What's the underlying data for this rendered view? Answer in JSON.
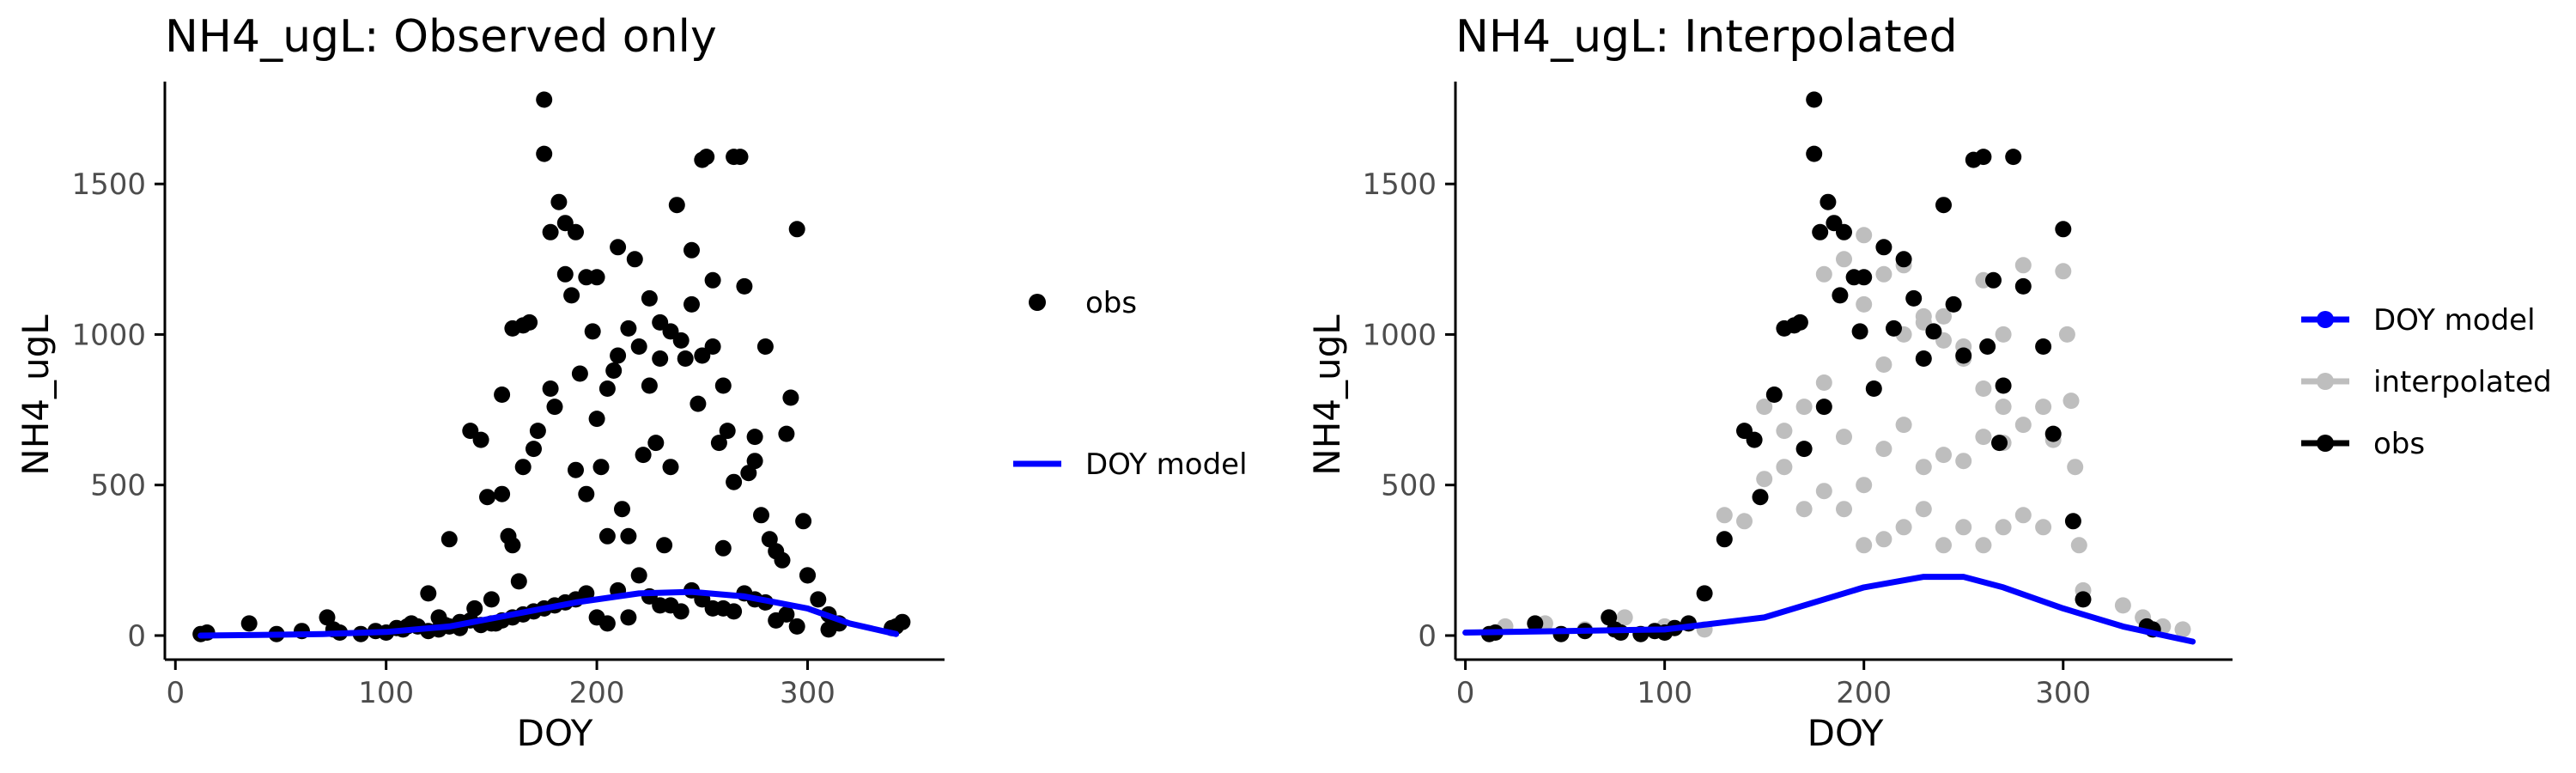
{
  "panels": [
    {
      "title": "NH4_ugL: Observed only",
      "xlabel": "DOY",
      "ylabel": "NH4_ugL",
      "x_ticks": [
        0,
        100,
        200,
        300
      ],
      "y_ticks": [
        0,
        500,
        1000,
        1500
      ],
      "legend": [
        {
          "label": "obs",
          "key": "point"
        },
        {
          "label": "DOY model",
          "key": "line"
        }
      ]
    },
    {
      "title": "NH4_ugL: Interpolated",
      "xlabel": "DOY",
      "ylabel": "NH4_ugL",
      "x_ticks": [
        0,
        100,
        200,
        300
      ],
      "y_ticks": [
        0,
        500,
        1000,
        1500
      ],
      "legend": [
        {
          "label": "DOY model",
          "key": "line-point"
        },
        {
          "label": "interpolated",
          "key": "line-point"
        },
        {
          "label": "obs",
          "key": "line-point"
        }
      ]
    }
  ],
  "colors": {
    "obs": "#000000",
    "model": "#0000ff",
    "interpolated": "#bebebe",
    "axis": "#000000",
    "tick_label": "#4d4d4d"
  },
  "chart_data": [
    {
      "type": "scatter",
      "title": "NH4_ugL: Observed only",
      "xlabel": "DOY",
      "ylabel": "NH4_ugL",
      "xlim": [
        -5,
        365
      ],
      "ylim": [
        -80,
        1840
      ],
      "grid": false,
      "legend_position": "right",
      "series": [
        {
          "name": "obs",
          "kind": "points",
          "x": [
            12,
            15,
            35,
            48,
            60,
            72,
            75,
            78,
            88,
            95,
            100,
            105,
            108,
            112,
            115,
            120,
            125,
            128,
            130,
            135,
            140,
            142,
            145,
            148,
            150,
            152,
            155,
            155,
            158,
            160,
            160,
            163,
            165,
            165,
            168,
            170,
            172,
            175,
            175,
            178,
            178,
            180,
            182,
            185,
            185,
            188,
            190,
            190,
            192,
            195,
            195,
            198,
            200,
            200,
            202,
            205,
            205,
            208,
            210,
            210,
            212,
            215,
            215,
            218,
            220,
            222,
            225,
            225,
            228,
            230,
            230,
            232,
            235,
            235,
            238,
            240,
            242,
            245,
            245,
            248,
            250,
            250,
            252,
            255,
            255,
            258,
            260,
            260,
            262,
            265,
            265,
            268,
            270,
            272,
            275,
            275,
            278,
            280,
            282,
            285,
            288,
            290,
            292,
            295,
            298,
            300,
            305,
            310,
            315,
            340,
            342,
            345,
            120,
            130,
            140,
            150,
            160,
            170,
            180,
            190,
            200,
            210,
            220,
            230,
            240,
            250,
            260,
            270,
            280,
            290,
            300,
            110,
            125,
            135,
            145,
            155,
            165,
            175,
            185,
            195,
            205,
            215,
            225,
            235,
            245,
            255,
            265,
            275,
            285,
            295,
            310
          ],
          "y": [
            5,
            10,
            40,
            5,
            15,
            60,
            20,
            10,
            5,
            15,
            10,
            25,
            20,
            40,
            30,
            140,
            60,
            35,
            320,
            45,
            680,
            90,
            650,
            460,
            120,
            40,
            800,
            470,
            330,
            1020,
            300,
            180,
            1030,
            560,
            1040,
            620,
            680,
            1780,
            1600,
            1340,
            820,
            760,
            1440,
            1370,
            1200,
            1130,
            550,
            1340,
            870,
            1190,
            470,
            1010,
            720,
            1190,
            560,
            820,
            330,
            880,
            930,
            1290,
            420,
            1020,
            330,
            1250,
            960,
            600,
            1120,
            830,
            640,
            920,
            1040,
            300,
            1010,
            560,
            1430,
            980,
            920,
            1100,
            1280,
            770,
            930,
            1580,
            1590,
            960,
            1180,
            640,
            830,
            290,
            680,
            510,
            1590,
            1590,
            1160,
            540,
            660,
            580,
            400,
            960,
            320,
            280,
            250,
            670,
            790,
            1350,
            380,
            200,
            120,
            70,
            40,
            25,
            30,
            45,
            15,
            30,
            50,
            40,
            60,
            80,
            100,
            120,
            60,
            150,
            200,
            100,
            80,
            120,
            90,
            140,
            110,
            70,
            200,
            30,
            20,
            25,
            35,
            50,
            70,
            90,
            110,
            140,
            40,
            60,
            130,
            100,
            150,
            90,
            80,
            120,
            50,
            30,
            20
          ],
          "y_note": "approximate sample; full dataset not recoverable"
        },
        {
          "name": "DOY model",
          "kind": "line",
          "x": [
            12,
            40,
            70,
            100,
            130,
            160,
            190,
            220,
            245,
            270,
            300,
            320,
            342
          ],
          "y": [
            0,
            2,
            5,
            12,
            30,
            70,
            110,
            140,
            145,
            130,
            90,
            40,
            5
          ]
        }
      ]
    },
    {
      "type": "scatter",
      "title": "NH4_ugL: Interpolated",
      "xlabel": "DOY",
      "ylabel": "NH4_ugL",
      "xlim": [
        -5,
        385
      ],
      "ylim": [
        -80,
        1840
      ],
      "grid": false,
      "legend_position": "right",
      "series": [
        {
          "name": "interpolated",
          "kind": "points",
          "x": [
            180,
            190,
            200,
            210,
            220,
            230,
            240,
            250,
            260,
            270,
            280,
            290,
            295,
            300,
            302,
            304,
            306,
            308,
            310,
            200,
            210,
            220,
            230,
            240,
            250,
            260,
            270,
            280,
            150,
            160,
            170,
            180,
            190,
            200,
            210,
            220,
            230,
            240,
            250,
            260,
            270,
            130,
            140,
            150,
            160,
            170,
            180,
            190,
            200,
            210,
            220,
            230,
            240,
            250,
            260,
            270,
            280,
            290,
            20,
            40,
            60,
            80,
            100,
            120,
            330,
            340,
            350,
            360
          ],
          "y": [
            1200,
            1250,
            1100,
            900,
            1000,
            1060,
            980,
            960,
            820,
            760,
            700,
            760,
            650,
            1210,
            1000,
            780,
            560,
            300,
            150,
            1330,
            1200,
            1230,
            1040,
            1060,
            920,
            1180,
            1000,
            1230,
            760,
            680,
            760,
            840,
            660,
            500,
            620,
            700,
            560,
            600,
            580,
            660,
            640,
            400,
            380,
            520,
            560,
            420,
            480,
            420,
            300,
            320,
            360,
            420,
            300,
            360,
            300,
            360,
            400,
            360,
            30,
            40,
            20,
            60,
            30,
            20,
            100,
            60,
            30,
            20
          ]
        },
        {
          "name": "obs",
          "kind": "points",
          "x": [
            12,
            15,
            35,
            48,
            60,
            72,
            75,
            78,
            88,
            95,
            100,
            105,
            112,
            120,
            130,
            140,
            145,
            148,
            155,
            160,
            165,
            168,
            170,
            175,
            175,
            178,
            180,
            182,
            185,
            188,
            190,
            195,
            198,
            200,
            205,
            210,
            215,
            220,
            225,
            230,
            235,
            240,
            245,
            250,
            255,
            260,
            262,
            265,
            268,
            270,
            275,
            280,
            290,
            295,
            300,
            305,
            310,
            342,
            345
          ],
          "y": [
            5,
            10,
            40,
            5,
            15,
            60,
            20,
            10,
            5,
            15,
            10,
            25,
            40,
            140,
            320,
            680,
            650,
            460,
            800,
            1020,
            1030,
            1040,
            620,
            1780,
            1600,
            1340,
            760,
            1440,
            1370,
            1130,
            1340,
            1190,
            1010,
            1190,
            820,
            1290,
            1020,
            1250,
            1120,
            920,
            1010,
            1430,
            1100,
            930,
            1580,
            1590,
            960,
            1180,
            640,
            830,
            1590,
            1160,
            960,
            670,
            1350,
            380,
            120,
            30,
            20
          ]
        },
        {
          "name": "DOY model",
          "kind": "line",
          "x": [
            0,
            50,
            100,
            150,
            200,
            230,
            250,
            270,
            300,
            330,
            365
          ],
          "y": [
            10,
            15,
            20,
            60,
            160,
            195,
            195,
            160,
            90,
            30,
            -20
          ]
        }
      ]
    }
  ]
}
